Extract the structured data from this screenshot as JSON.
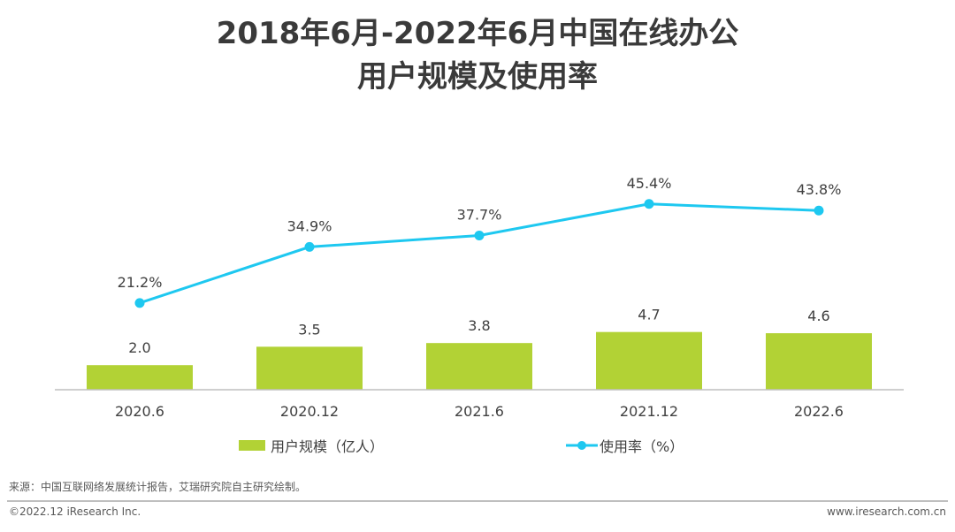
{
  "title": {
    "line1": "2018年6月-2022年6月中国在线办公",
    "line2": "用户规模及使用率"
  },
  "colors": {
    "bar": "#b2d235",
    "line": "#1ec8f0",
    "axis": "#bfbfbf"
  },
  "chart_data": {
    "type": "bar+line",
    "categories": [
      "2020.6",
      "2020.12",
      "2021.6",
      "2021.12",
      "2022.6"
    ],
    "series": [
      {
        "name": "用户规模（亿人）",
        "type": "bar",
        "values": [
          2.0,
          3.5,
          3.8,
          4.7,
          4.6
        ],
        "labels": [
          "2.0",
          "3.5",
          "3.8",
          "4.7",
          "4.6"
        ]
      },
      {
        "name": "使用率（%）",
        "type": "line",
        "values": [
          21.2,
          34.9,
          37.7,
          45.4,
          43.8
        ],
        "labels": [
          "21.2%",
          "34.9%",
          "37.7%",
          "45.4%",
          "43.8%"
        ]
      }
    ],
    "legend_position": "bottom",
    "grid": false
  },
  "source": "来源：中国互联网络发展统计报告，艾瑞研究院自主研究绘制。",
  "footer": {
    "copyright": "©2022.12 iResearch Inc.",
    "website": "www.iresearch.com.cn"
  }
}
